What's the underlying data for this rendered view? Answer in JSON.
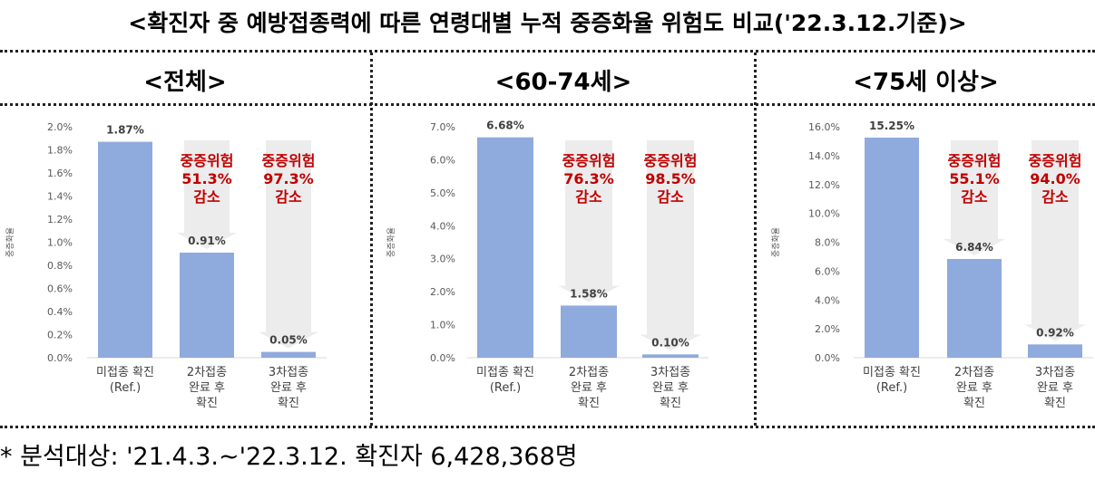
{
  "title": "<확진자 중 예방접종력에 따른 연령대별 누적 중증화율 위험도 비교('22.3.12.기준)>",
  "footnote": "* 분석대상: '21.4.3.~'22.3.12. 확진자 6,428,368명",
  "colors": {
    "bar": "#8faadc",
    "arrow": "#ececec",
    "risk_text": "#c00000",
    "grid": "#d9d9d9"
  },
  "chart_data": [
    {
      "type": "bar",
      "title": "<전체>",
      "ylabel": "중증화율",
      "categories": [
        [
          "미접종 확진",
          "(Ref.)"
        ],
        [
          "2차접종",
          "완료 후",
          "확진"
        ],
        [
          "3차접종",
          "완료 후",
          "확진"
        ]
      ],
      "values": [
        1.87,
        0.91,
        0.05
      ],
      "data_labels": [
        "1.87%",
        "0.91%",
        "0.05%"
      ],
      "yticks": [
        "0.0%",
        "0.2%",
        "0.4%",
        "0.6%",
        "0.8%",
        "1.0%",
        "1.2%",
        "1.4%",
        "1.6%",
        "1.8%",
        "2.0%"
      ],
      "ylim": [
        0,
        2.0
      ],
      "annotations": [
        {
          "category_index": 1,
          "lines": [
            "중증위험",
            "51.3%",
            "감소"
          ]
        },
        {
          "category_index": 2,
          "lines": [
            "중증위험",
            "97.3%",
            "감소"
          ]
        }
      ]
    },
    {
      "type": "bar",
      "title": "<60-74세>",
      "ylabel": "중증화율",
      "categories": [
        [
          "미접종 확진",
          "(Ref.)"
        ],
        [
          "2차접종",
          "완료 후",
          "확진"
        ],
        [
          "3차접종",
          "완료 후",
          "확진"
        ]
      ],
      "values": [
        6.68,
        1.58,
        0.1
      ],
      "data_labels": [
        "6.68%",
        "1.58%",
        "0.10%"
      ],
      "yticks": [
        "0.0%",
        "1.0%",
        "2.0%",
        "3.0%",
        "4.0%",
        "5.0%",
        "6.0%",
        "7.0%"
      ],
      "ylim": [
        0,
        7.0
      ],
      "annotations": [
        {
          "category_index": 1,
          "lines": [
            "중증위험",
            "76.3%",
            "감소"
          ]
        },
        {
          "category_index": 2,
          "lines": [
            "중증위험",
            "98.5%",
            "감소"
          ]
        }
      ]
    },
    {
      "type": "bar",
      "title": "<75세 이상>",
      "ylabel": "중증화율",
      "categories": [
        [
          "미접종 확진",
          "(Ref.)"
        ],
        [
          "2차접종",
          "완료 후",
          "확진"
        ],
        [
          "3차접종",
          "완료 후",
          "확진"
        ]
      ],
      "values": [
        15.25,
        6.84,
        0.92
      ],
      "data_labels": [
        "15.25%",
        "6.84%",
        "0.92%"
      ],
      "yticks": [
        "0.0%",
        "2.0%",
        "4.0%",
        "6.0%",
        "8.0%",
        "10.0%",
        "12.0%",
        "14.0%",
        "16.0%"
      ],
      "ylim": [
        0,
        16.0
      ],
      "annotations": [
        {
          "category_index": 1,
          "lines": [
            "중증위험",
            "55.1%",
            "감소"
          ]
        },
        {
          "category_index": 2,
          "lines": [
            "중증위험",
            "94.0%",
            "감소"
          ]
        }
      ]
    }
  ]
}
